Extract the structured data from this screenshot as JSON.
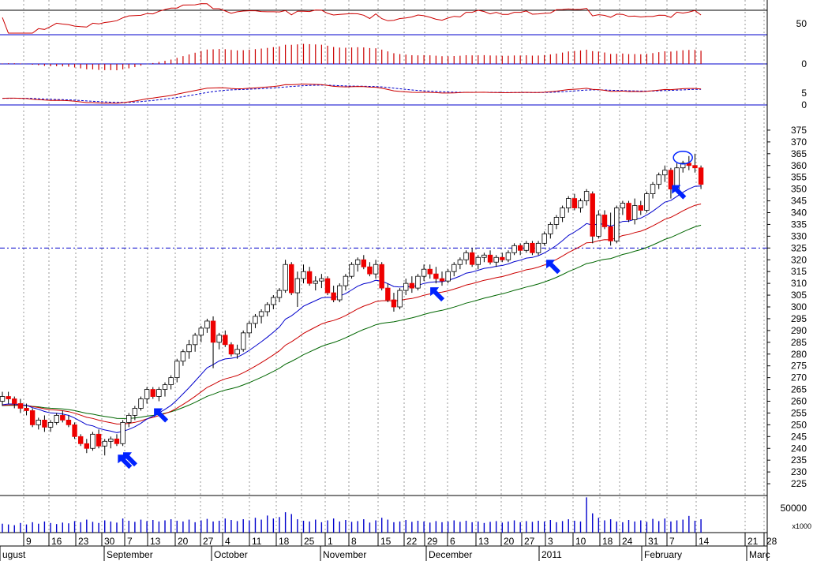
{
  "chart_data": {
    "type": "candlestick",
    "panels": {
      "rsi": {
        "ticks": [
          "50"
        ],
        "ylim": [
          0,
          100
        ],
        "series_color": "#cc0000"
      },
      "histogram": {
        "ticks": [
          "0"
        ],
        "color": "#cc0000"
      },
      "macd": {
        "ticks": [
          "5",
          "0"
        ],
        "macd_color": "#cc0000",
        "signal_color": "#0000cc"
      },
      "price": {
        "ylim": [
          220,
          380
        ],
        "ticks": [
          "375",
          "370",
          "365",
          "360",
          "355",
          "350",
          "345",
          "340",
          "335",
          "330",
          "325",
          "320",
          "315",
          "310",
          "305",
          "300",
          "295",
          "290",
          "285",
          "280",
          "275",
          "270",
          "265",
          "260",
          "255",
          "250",
          "245",
          "240",
          "235",
          "230",
          "225"
        ],
        "support_level": 325,
        "up_color": "#ffffff",
        "down_color": "#ee0000",
        "ma_colors": {
          "fast": "#0000cc",
          "medium": "#cc0000",
          "slow": "#006600"
        },
        "arrow_color": "#0022ff",
        "circle_color": "#0022ff"
      },
      "volume": {
        "ticks": [
          "50000"
        ],
        "unit": "x1000",
        "color": "#0000cc"
      }
    },
    "x_axis": {
      "day_ticks": [
        "9",
        "16",
        "23",
        "30",
        "7",
        "13",
        "20",
        "27",
        "4",
        "11",
        "18",
        "25",
        "1",
        "8",
        "15",
        "22",
        "29",
        "6",
        "13",
        "20",
        "27",
        "3",
        "10",
        "18",
        "24",
        "31",
        "7",
        "14",
        "21",
        "28"
      ],
      "months": [
        "ugust",
        "September",
        "October",
        "November",
        "December",
        "2011",
        "February",
        "Marc"
      ]
    },
    "ohlc": [
      [
        260,
        264,
        258,
        262
      ],
      [
        262,
        264,
        259,
        261
      ],
      [
        261,
        262,
        257,
        259
      ],
      [
        259,
        261,
        255,
        257
      ],
      [
        257,
        259,
        254,
        256
      ],
      [
        256,
        257,
        249,
        250
      ],
      [
        250,
        253,
        248,
        252
      ],
      [
        252,
        254,
        247,
        249
      ],
      [
        249,
        252,
        247,
        251
      ],
      [
        251,
        255,
        250,
        254
      ],
      [
        254,
        256,
        251,
        252
      ],
      [
        252,
        254,
        249,
        250
      ],
      [
        250,
        251,
        244,
        245
      ],
      [
        245,
        246,
        241,
        242
      ],
      [
        242,
        244,
        238,
        240
      ],
      [
        240,
        247,
        239,
        246
      ],
      [
        246,
        248,
        240,
        241
      ],
      [
        241,
        244,
        237,
        243
      ],
      [
        243,
        245,
        240,
        244
      ],
      [
        244,
        246,
        241,
        242
      ],
      [
        242,
        252,
        241,
        251
      ],
      [
        251,
        255,
        249,
        254
      ],
      [
        254,
        258,
        252,
        257
      ],
      [
        257,
        262,
        256,
        261
      ],
      [
        261,
        266,
        259,
        265
      ],
      [
        265,
        266,
        261,
        262
      ],
      [
        262,
        266,
        260,
        265
      ],
      [
        265,
        268,
        262,
        267
      ],
      [
        267,
        271,
        265,
        270
      ],
      [
        270,
        278,
        268,
        277
      ],
      [
        277,
        282,
        275,
        281
      ],
      [
        281,
        286,
        278,
        284
      ],
      [
        284,
        289,
        281,
        288
      ],
      [
        288,
        292,
        285,
        291
      ],
      [
        291,
        295,
        289,
        294
      ],
      [
        294,
        296,
        274,
        285
      ],
      [
        285,
        289,
        282,
        288
      ],
      [
        288,
        290,
        283,
        284
      ],
      [
        284,
        285,
        279,
        280
      ],
      [
        280,
        284,
        278,
        282
      ],
      [
        282,
        290,
        281,
        289
      ],
      [
        289,
        294,
        287,
        293
      ],
      [
        293,
        297,
        291,
        296
      ],
      [
        296,
        299,
        293,
        298
      ],
      [
        298,
        302,
        296,
        301
      ],
      [
        301,
        305,
        299,
        304
      ],
      [
        304,
        308,
        302,
        307
      ],
      [
        307,
        320,
        306,
        318
      ],
      [
        318,
        319,
        305,
        306
      ],
      [
        306,
        315,
        300,
        312
      ],
      [
        312,
        318,
        310,
        315
      ],
      [
        315,
        317,
        309,
        310
      ],
      [
        310,
        313,
        307,
        311
      ],
      [
        311,
        314,
        308,
        312
      ],
      [
        312,
        313,
        305,
        306
      ],
      [
        306,
        309,
        302,
        303
      ],
      [
        303,
        310,
        302,
        309
      ],
      [
        309,
        314,
        307,
        313
      ],
      [
        313,
        319,
        312,
        318
      ],
      [
        318,
        321,
        315,
        320
      ],
      [
        320,
        322,
        316,
        317
      ],
      [
        317,
        319,
        313,
        314
      ],
      [
        314,
        320,
        312,
        318
      ],
      [
        318,
        319,
        307,
        308
      ],
      [
        308,
        310,
        302,
        303
      ],
      [
        303,
        306,
        298,
        300
      ],
      [
        300,
        308,
        299,
        307
      ],
      [
        307,
        312,
        305,
        310
      ],
      [
        310,
        313,
        306,
        308
      ],
      [
        308,
        314,
        307,
        313
      ],
      [
        313,
        318,
        311,
        316
      ],
      [
        316,
        318,
        312,
        314
      ],
      [
        314,
        317,
        310,
        312
      ],
      [
        312,
        315,
        309,
        311
      ],
      [
        311,
        316,
        310,
        315
      ],
      [
        315,
        319,
        313,
        318
      ],
      [
        318,
        321,
        316,
        320
      ],
      [
        320,
        324,
        318,
        323
      ],
      [
        323,
        325,
        317,
        318
      ],
      [
        318,
        322,
        316,
        321
      ],
      [
        321,
        323,
        319,
        322
      ],
      [
        322,
        324,
        318,
        319
      ],
      [
        319,
        322,
        317,
        321
      ],
      [
        321,
        323,
        319,
        320
      ],
      [
        320,
        324,
        319,
        323
      ],
      [
        323,
        327,
        322,
        326
      ],
      [
        326,
        327,
        322,
        324
      ],
      [
        324,
        328,
        323,
        327
      ],
      [
        327,
        328,
        322,
        323
      ],
      [
        323,
        328,
        322,
        327
      ],
      [
        327,
        332,
        326,
        331
      ],
      [
        331,
        336,
        329,
        335
      ],
      [
        335,
        339,
        333,
        338
      ],
      [
        338,
        343,
        336,
        342
      ],
      [
        342,
        347,
        340,
        346
      ],
      [
        346,
        348,
        341,
        342
      ],
      [
        342,
        346,
        340,
        345
      ],
      [
        345,
        350,
        343,
        349
      ],
      [
        348,
        349,
        327,
        330
      ],
      [
        330,
        341,
        329,
        339
      ],
      [
        339,
        341,
        333,
        334
      ],
      [
        334,
        340,
        326,
        328
      ],
      [
        328,
        343,
        327,
        342
      ],
      [
        342,
        345,
        339,
        344
      ],
      [
        344,
        345,
        336,
        337
      ],
      [
        337,
        346,
        335,
        343
      ],
      [
        343,
        345,
        339,
        341
      ],
      [
        341,
        349,
        340,
        348
      ],
      [
        348,
        353,
        346,
        352
      ],
      [
        352,
        357,
        350,
        356
      ],
      [
        356,
        360,
        353,
        358
      ],
      [
        358,
        359,
        346,
        350
      ],
      [
        350,
        361,
        349,
        359
      ],
      [
        359,
        362,
        357,
        361
      ],
      [
        361,
        364,
        358,
        360
      ],
      [
        360,
        365,
        357,
        359
      ],
      [
        359,
        360,
        350,
        352
      ]
    ],
    "volume": [
      24000,
      22000,
      20000,
      26000,
      22000,
      28000,
      24000,
      30000,
      26000,
      23000,
      27000,
      25000,
      31000,
      28000,
      35000,
      29000,
      26000,
      33000,
      30000,
      27000,
      38000,
      32000,
      29000,
      35000,
      31000,
      34000,
      30000,
      33000,
      36000,
      32000,
      30000,
      35000,
      28000,
      33000,
      37000,
      30000,
      32000,
      38000,
      34000,
      31000,
      36000,
      33000,
      40000,
      35000,
      46000,
      38000,
      42000,
      55000,
      50000,
      36000,
      32000,
      30000,
      35000,
      28000,
      33000,
      38000,
      30000,
      34000,
      29000,
      31000,
      36000,
      27000,
      33000,
      40000,
      35000,
      28000,
      30000,
      34000,
      29000,
      32000,
      30000,
      27000,
      31000,
      28000,
      30000,
      33000,
      29000,
      32000,
      28000,
      30000,
      26000,
      29000,
      31000,
      27000,
      30000,
      33000,
      28000,
      31000,
      29000,
      32000,
      30000,
      34000,
      28000,
      31000,
      36000,
      32000,
      30000,
      95000,
      52000,
      40000,
      33000,
      36000,
      30000,
      28000,
      34000,
      30000,
      33000,
      29000,
      37000,
      31000,
      38000,
      30000,
      33000,
      35000,
      45000,
      32000,
      36000
    ]
  }
}
